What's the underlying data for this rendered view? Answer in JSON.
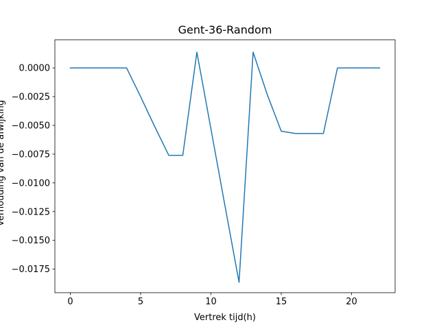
{
  "chart_data": {
    "type": "line",
    "title": "Gent-36-Random",
    "xlabel": "Vertrek tijd(h)",
    "ylabel": "Verhouding van de afwijking",
    "xlim": [
      -1.1,
      23.1
    ],
    "ylim": [
      -0.01955,
      0.00245
    ],
    "x_ticks": [
      0,
      5,
      10,
      15,
      20
    ],
    "x_tick_labels": [
      "0",
      "5",
      "10",
      "15",
      "20"
    ],
    "y_ticks": [
      0.0,
      -0.0025,
      -0.005,
      -0.0075,
      -0.01,
      -0.0125,
      -0.015,
      -0.0175
    ],
    "y_tick_labels": [
      "0.0000",
      "−0.0025",
      "−0.0050",
      "−0.0075",
      "−0.0100",
      "−0.0125",
      "−0.0150",
      "−0.0175"
    ],
    "grid": false,
    "series": [
      {
        "color": "#1f77b4",
        "x": [
          0,
          1,
          2,
          3,
          4,
          5,
          6,
          7,
          8,
          9,
          10,
          11,
          12,
          13,
          14,
          15,
          16,
          17,
          18,
          19,
          20,
          21,
          22
        ],
        "values": [
          0.0,
          0.0,
          0.0,
          0.0,
          0.0,
          -0.0025,
          -0.0051,
          -0.0076,
          -0.0076,
          0.00137,
          -0.0053,
          -0.012,
          -0.01865,
          0.00137,
          -0.0023,
          -0.0055,
          -0.0057,
          -0.0057,
          -0.0057,
          0.0,
          0.0,
          0.0,
          0.0
        ]
      }
    ]
  }
}
